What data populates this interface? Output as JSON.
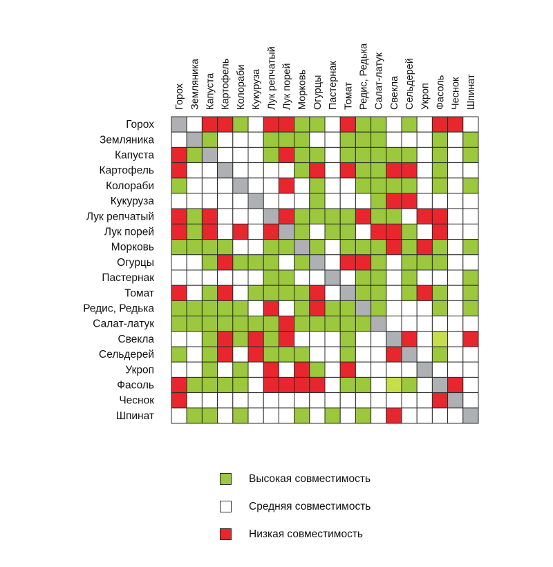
{
  "colors": {
    "high": "#9bc83c",
    "medium": "#ffffff",
    "low": "#e8262d",
    "diagonal": "#aeb0b3",
    "high_light": "#c6de4a"
  },
  "chart_data": {
    "type": "heatmap",
    "value_codes": {
      "H": "high",
      "M": "medium",
      "L": "low",
      "D": "diagonal",
      "Y": "high_light"
    },
    "columns": [
      "Горох",
      "Земляника",
      "Капуста",
      "Картофель",
      "Колораби",
      "Кукуруза",
      "Лук репчатый",
      "Лук порей",
      "Морковь",
      "Огурцы",
      "Пастернак",
      "Томат",
      "Редис, Редька",
      "Салат-латук",
      "Свекла",
      "Сельдерей",
      "Укроп",
      "Фасоль",
      "Чеснок",
      "Шпинат"
    ],
    "rows": [
      "Горох",
      "Земляника",
      "Капуста",
      "Картофель",
      "Колораби",
      "Кукуруза",
      "Лук репчатый",
      "Лук порей",
      "Морковь",
      "Огурцы",
      "Пастернак",
      "Томат",
      "Редис, Редька",
      "Салат-латук",
      "Свекла",
      "Сельдерей",
      "Укроп",
      "Фасоль",
      "Чеснок",
      "Шпинат"
    ],
    "matrix": [
      [
        "D",
        "M",
        "L",
        "L",
        "H",
        "M",
        "L",
        "L",
        "H",
        "H",
        "M",
        "L",
        "H",
        "H",
        "M",
        "H",
        "M",
        "L",
        "L",
        "M"
      ],
      [
        "M",
        "D",
        "H",
        "M",
        "M",
        "M",
        "H",
        "H",
        "H",
        "M",
        "M",
        "H",
        "H",
        "H",
        "M",
        "M",
        "M",
        "H",
        "M",
        "H"
      ],
      [
        "L",
        "H",
        "D",
        "M",
        "M",
        "M",
        "H",
        "L",
        "H",
        "H",
        "M",
        "H",
        "H",
        "H",
        "H",
        "H",
        "M",
        "H",
        "M",
        "H"
      ],
      [
        "L",
        "M",
        "M",
        "D",
        "M",
        "M",
        "M",
        "M",
        "H",
        "L",
        "M",
        "L",
        "H",
        "H",
        "L",
        "L",
        "M",
        "H",
        "M",
        "M"
      ],
      [
        "H",
        "M",
        "M",
        "M",
        "D",
        "M",
        "M",
        "L",
        "M",
        "H",
        "M",
        "M",
        "H",
        "H",
        "H",
        "H",
        "M",
        "H",
        "M",
        "H"
      ],
      [
        "M",
        "M",
        "M",
        "M",
        "M",
        "D",
        "M",
        "M",
        "M",
        "H",
        "M",
        "M",
        "M",
        "H",
        "L",
        "L",
        "M",
        "M",
        "M",
        "M"
      ],
      [
        "L",
        "H",
        "L",
        "M",
        "M",
        "M",
        "D",
        "L",
        "H",
        "H",
        "H",
        "H",
        "L",
        "H",
        "H",
        "M",
        "L",
        "L",
        "M",
        "M"
      ],
      [
        "L",
        "H",
        "L",
        "M",
        "L",
        "M",
        "L",
        "D",
        "H",
        "M",
        "H",
        "H",
        "M",
        "L",
        "L",
        "H",
        "M",
        "L",
        "M",
        "M"
      ],
      [
        "H",
        "H",
        "H",
        "H",
        "M",
        "M",
        "H",
        "H",
        "D",
        "H",
        "M",
        "H",
        "H",
        "H",
        "L",
        "H",
        "L",
        "H",
        "M",
        "H"
      ],
      [
        "M",
        "M",
        "H",
        "L",
        "H",
        "H",
        "H",
        "M",
        "H",
        "D",
        "M",
        "L",
        "L",
        "H",
        "M",
        "H",
        "H",
        "H",
        "M",
        "M"
      ],
      [
        "M",
        "M",
        "M",
        "M",
        "M",
        "M",
        "H",
        "H",
        "M",
        "M",
        "D",
        "M",
        "H",
        "H",
        "M",
        "H",
        "M",
        "M",
        "M",
        "H"
      ],
      [
        "L",
        "M",
        "H",
        "L",
        "M",
        "H",
        "H",
        "H",
        "H",
        "L",
        "M",
        "D",
        "H",
        "H",
        "M",
        "H",
        "L",
        "H",
        "M",
        "H"
      ],
      [
        "H",
        "H",
        "H",
        "H",
        "H",
        "M",
        "L",
        "M",
        "H",
        "L",
        "H",
        "H",
        "D",
        "H",
        "M",
        "M",
        "M",
        "H",
        "M",
        "H"
      ],
      [
        "H",
        "H",
        "H",
        "H",
        "H",
        "H",
        "H",
        "L",
        "H",
        "H",
        "H",
        "H",
        "H",
        "D",
        "M",
        "M",
        "M",
        "M",
        "M",
        "M"
      ],
      [
        "M",
        "M",
        "H",
        "L",
        "H",
        "L",
        "H",
        "L",
        "M",
        "M",
        "M",
        "H",
        "M",
        "M",
        "D",
        "L",
        "M",
        "Y",
        "M",
        "L"
      ],
      [
        "H",
        "M",
        "H",
        "L",
        "M",
        "L",
        "H",
        "H",
        "H",
        "M",
        "M",
        "H",
        "M",
        "M",
        "L",
        "D",
        "M",
        "H",
        "M",
        "M"
      ],
      [
        "M",
        "M",
        "H",
        "M",
        "H",
        "M",
        "L",
        "M",
        "L",
        "H",
        "M",
        "L",
        "M",
        "M",
        "M",
        "M",
        "D",
        "M",
        "M",
        "M"
      ],
      [
        "L",
        "H",
        "H",
        "H",
        "H",
        "M",
        "L",
        "L",
        "L",
        "L",
        "M",
        "H",
        "H",
        "M",
        "Y",
        "H",
        "M",
        "D",
        "L",
        "M"
      ],
      [
        "L",
        "M",
        "M",
        "M",
        "M",
        "M",
        "M",
        "M",
        "M",
        "M",
        "M",
        "M",
        "M",
        "M",
        "M",
        "M",
        "M",
        "L",
        "D",
        "M"
      ],
      [
        "M",
        "H",
        "H",
        "M",
        "H",
        "M",
        "M",
        "M",
        "H",
        "M",
        "H",
        "M",
        "H",
        "M",
        "L",
        "M",
        "M",
        "M",
        "M",
        "D"
      ]
    ]
  },
  "legend": [
    {
      "label": "Высокая совместимость",
      "color": "#9bc83c"
    },
    {
      "label": "Средняя совместимость",
      "color": "#ffffff"
    },
    {
      "label": "Низкая совместимость",
      "color": "#e8262d"
    }
  ]
}
